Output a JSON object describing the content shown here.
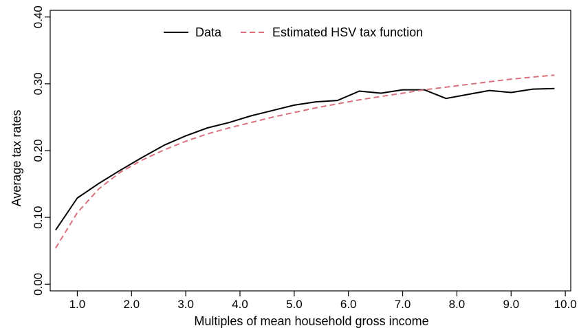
{
  "chart_data": {
    "type": "line",
    "xlabel": "Multiples of mean household gross income",
    "ylabel": "Average tax rates",
    "xlim": [
      0.5,
      10.1
    ],
    "ylim": [
      -0.01,
      0.41
    ],
    "x_ticks": [
      1.0,
      2.0,
      3.0,
      4.0,
      5.0,
      6.0,
      7.0,
      8.0,
      9.0,
      10.0
    ],
    "x_tick_labels": [
      "1.0",
      "2.0",
      "3.0",
      "4.0",
      "5.0",
      "6.0",
      "7.0",
      "8.0",
      "9.0",
      "10.0"
    ],
    "y_ticks": [
      0.0,
      0.1,
      0.2,
      0.3,
      0.4
    ],
    "y_tick_labels": [
      "0.00",
      "0.10",
      "0.20",
      "0.30",
      "0.40"
    ],
    "grid": false,
    "legend_position": "top-center",
    "x": [
      0.6,
      1.0,
      1.4,
      1.8,
      2.2,
      2.6,
      3.0,
      3.4,
      3.8,
      4.2,
      4.6,
      5.0,
      5.4,
      5.8,
      6.2,
      6.6,
      7.0,
      7.4,
      7.8,
      8.2,
      8.6,
      9.0,
      9.4,
      9.8
    ],
    "series": [
      {
        "name": "Data",
        "color": "#000000",
        "dash": "solid",
        "values": [
          0.081,
          0.129,
          0.151,
          0.171,
          0.19,
          0.208,
          0.222,
          0.234,
          0.242,
          0.252,
          0.26,
          0.268,
          0.273,
          0.275,
          0.289,
          0.286,
          0.291,
          0.291,
          0.278,
          0.284,
          0.29,
          0.287,
          0.292,
          0.293
        ]
      },
      {
        "name": "Estimated HSV tax function",
        "color": "#d9707d",
        "dash": "dashed",
        "values": [
          0.054,
          0.107,
          0.143,
          0.168,
          0.186,
          0.201,
          0.214,
          0.225,
          0.234,
          0.242,
          0.25,
          0.257,
          0.264,
          0.27,
          0.276,
          0.281,
          0.286,
          0.291,
          0.295,
          0.299,
          0.303,
          0.307,
          0.31,
          0.313
        ]
      }
    ]
  }
}
